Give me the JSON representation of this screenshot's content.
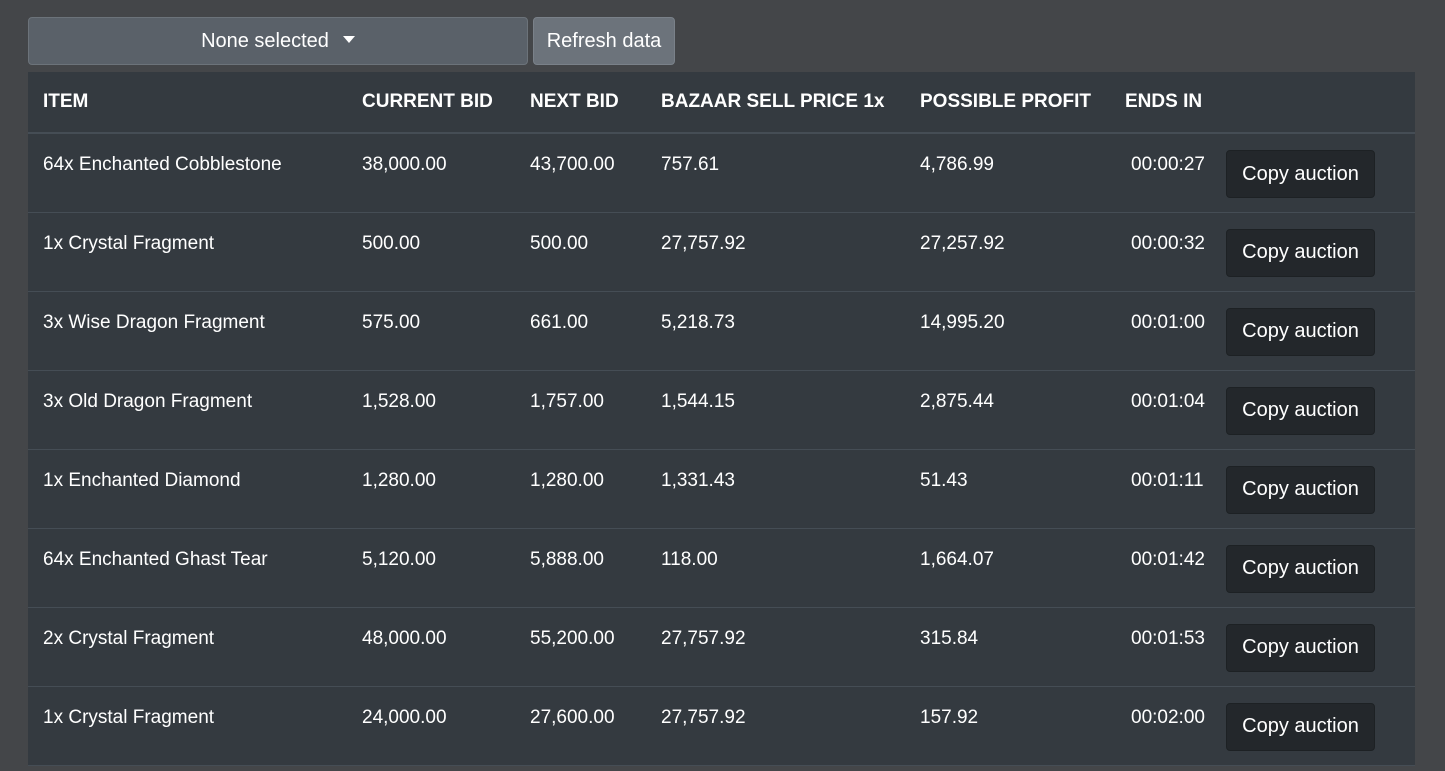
{
  "toolbar": {
    "dropdown_label": "None selected",
    "refresh_label": "Refresh data"
  },
  "table": {
    "headers": [
      "ITEM",
      "CURRENT BID",
      "NEXT BID",
      "BAZAAR SELL PRICE 1x",
      "POSSIBLE PROFIT",
      "ENDS IN",
      ""
    ],
    "button_label": "Copy auction",
    "rows": [
      {
        "item": "64x Enchanted Cobblestone",
        "current_bid": "38,000.00",
        "next_bid": "43,700.00",
        "bazaar": "757.61",
        "profit": "4,786.99",
        "ends": "00:00:27"
      },
      {
        "item": "1x Crystal Fragment",
        "current_bid": "500.00",
        "next_bid": "500.00",
        "bazaar": "27,757.92",
        "profit": "27,257.92",
        "ends": "00:00:32"
      },
      {
        "item": "3x Wise Dragon Fragment",
        "current_bid": "575.00",
        "next_bid": "661.00",
        "bazaar": "5,218.73",
        "profit": "14,995.20",
        "ends": "00:01:00"
      },
      {
        "item": "3x Old Dragon Fragment",
        "current_bid": "1,528.00",
        "next_bid": "1,757.00",
        "bazaar": "1,544.15",
        "profit": "2,875.44",
        "ends": "00:01:04"
      },
      {
        "item": "1x Enchanted Diamond",
        "current_bid": "1,280.00",
        "next_bid": "1,280.00",
        "bazaar": "1,331.43",
        "profit": "51.43",
        "ends": "00:01:11"
      },
      {
        "item": "64x Enchanted Ghast Tear",
        "current_bid": "5,120.00",
        "next_bid": "5,888.00",
        "bazaar": "118.00",
        "profit": "1,664.07",
        "ends": "00:01:42"
      },
      {
        "item": "2x Crystal Fragment",
        "current_bid": "48,000.00",
        "next_bid": "55,200.00",
        "bazaar": "27,757.92",
        "profit": "315.84",
        "ends": "00:01:53"
      },
      {
        "item": "1x Crystal Fragment",
        "current_bid": "24,000.00",
        "next_bid": "27,600.00",
        "bazaar": "27,757.92",
        "profit": "157.92",
        "ends": "00:02:00"
      }
    ]
  },
  "colors": {
    "page_bg": "#444649",
    "table_bg": "#343a40",
    "dropdown_bg": "#5a6169",
    "refresh_bg": "#6c737b",
    "copy_button_bg": "#23272b"
  }
}
